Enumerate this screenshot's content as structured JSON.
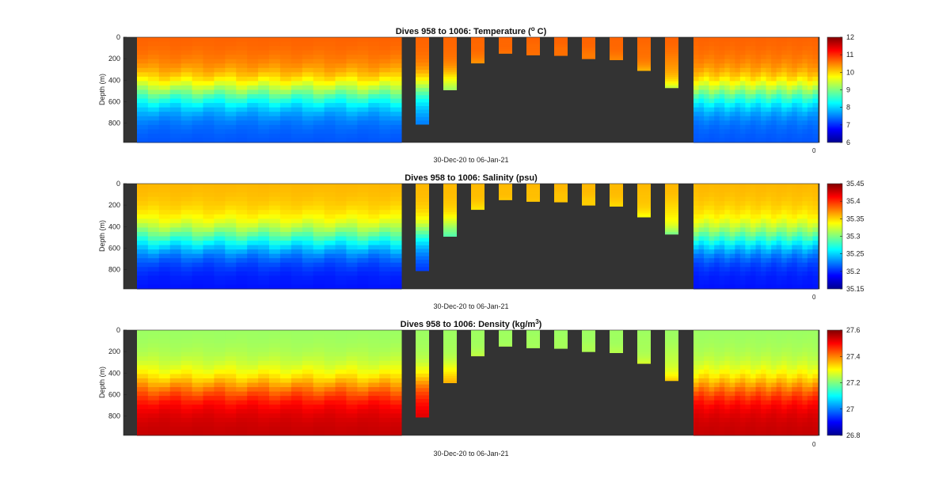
{
  "chart_data": [
    {
      "type": "heatmap",
      "variable": "temperature",
      "title_main": "Dives 958 to 1006: Temperature (",
      "title_sup": "o",
      "title_end": " C)",
      "xlabel": "30-Dec-20 to 06-Jan-21",
      "ylabel": "Depth (m)",
      "ylim": [
        0,
        980
      ],
      "yticks": [
        "0",
        "200",
        "400",
        "600",
        "800"
      ],
      "colorbar": {
        "min": 6,
        "max": 12,
        "ticks": [
          "12",
          "11",
          "10",
          "9",
          "8",
          "7",
          "6"
        ]
      },
      "x_tick_glyph": "0",
      "profiles": {
        "full_profile_segments": 2,
        "left_block": {
          "max_depth_m": 980
        },
        "right_block": {
          "max_depth_m": 980
        },
        "middle_dives_max_depth_m": [
          810,
          490,
          240,
          150,
          165,
          170,
          200,
          210,
          310,
          470
        ]
      },
      "surface_value": 10.7,
      "bottom_value": 7.2
    },
    {
      "type": "heatmap",
      "variable": "salinity",
      "title_main": "Dives 958 to 1006: Salinity (psu)",
      "title_sup": "",
      "title_end": "",
      "xlabel": "30-Dec-20 to 06-Jan-21",
      "ylabel": "Depth (m)",
      "ylim": [
        0,
        980
      ],
      "yticks": [
        "0",
        "200",
        "400",
        "600",
        "800"
      ],
      "colorbar": {
        "min": 35.15,
        "max": 35.45,
        "ticks": [
          "35.45",
          "35.4",
          "35.35",
          "35.3",
          "35.25",
          "35.2",
          "35.15"
        ]
      },
      "x_tick_glyph": "0",
      "profiles": {
        "left_block": {
          "max_depth_m": 980
        },
        "right_block": {
          "max_depth_m": 980
        },
        "middle_dives_max_depth_m": [
          810,
          490,
          240,
          150,
          165,
          170,
          200,
          210,
          310,
          470
        ]
      },
      "surface_value": 35.36,
      "bottom_value": 35.19
    },
    {
      "type": "heatmap",
      "variable": "density",
      "title_main": "Dives 958 to 1006: Density (kg/m",
      "title_sup": "3",
      "title_end": ")",
      "xlabel": "30-Dec-20 to 06-Jan-21",
      "ylabel": "Depth (m)",
      "ylim": [
        0,
        980
      ],
      "yticks": [
        "0",
        "200",
        "400",
        "600",
        "800"
      ],
      "colorbar": {
        "min": 26.8,
        "max": 27.6,
        "ticks": [
          "27.6",
          "27.4",
          "27.2",
          "27",
          "26.8"
        ]
      },
      "x_tick_glyph": "0",
      "profiles": {
        "left_block": {
          "max_depth_m": 980
        },
        "right_block": {
          "max_depth_m": 980
        },
        "middle_dives_max_depth_m": [
          810,
          490,
          240,
          150,
          165,
          170,
          200,
          210,
          310,
          470
        ]
      },
      "surface_value": 27.22,
      "bottom_value": 27.55
    }
  ],
  "colors": {
    "background_fill": "#333333",
    "page": "#ffffff"
  }
}
